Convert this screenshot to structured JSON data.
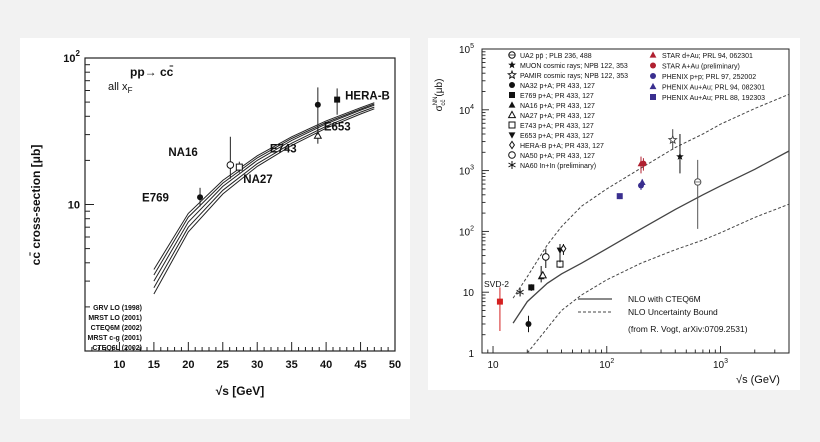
{
  "chart_data": [
    {
      "type": "line",
      "title": "pp→ cc̄",
      "subtitle": "all x_F",
      "xlabel": "√s [GeV]",
      "ylabel": "cc̄ cross-section [μb]",
      "xlim": [
        5,
        50
      ],
      "ylim": [
        1,
        100
      ],
      "y_scale": "log",
      "x_ticks": [
        "10",
        "15",
        "20",
        "25",
        "30",
        "35",
        "40",
        "45",
        "50"
      ],
      "x_tick_values": [
        10,
        15,
        20,
        25,
        30,
        35,
        40,
        45,
        50
      ],
      "y_ticks": [
        {
          "v": 10,
          "base": "10",
          "exp": ""
        },
        {
          "v": 100,
          "base": "10",
          "exp": "2"
        }
      ],
      "experiments": [
        {
          "label": "E769",
          "x": 21.7,
          "y": 11.2,
          "err_low": 9.7,
          "err_high": 13.0,
          "marker": "filled-circle"
        },
        {
          "label": "NA16",
          "x": 26.1,
          "y": 18.6,
          "err_low": 15.0,
          "err_high": 29.0,
          "marker": "open-circle"
        },
        {
          "label": "NA27",
          "x": 27.4,
          "y": 18.0,
          "err_low": 16.5,
          "err_high": 19.6,
          "marker": "open-square"
        },
        {
          "label": "E743",
          "x": 38.8,
          "y": 29.5,
          "err_low": 26.0,
          "err_high": 33.0,
          "marker": "open-triangle"
        },
        {
          "label": "E653",
          "x": 38.8,
          "y": 48.0,
          "err_low": 30.0,
          "err_high": 63.0,
          "marker": "filled-circle"
        },
        {
          "label": "HERA-B",
          "x": 41.6,
          "y": 52.0,
          "err_low": 41.0,
          "err_high": 62.0,
          "marker": "filled-square"
        }
      ],
      "curves": [
        {
          "name": "GRV LO (1998)",
          "x": [
            15,
            20,
            25,
            30,
            35,
            40,
            45,
            47
          ],
          "y": [
            3.6,
            8.7,
            14.6,
            21.5,
            29.0,
            37.2,
            45.8,
            49.5
          ]
        },
        {
          "name": "MRST LO (2001)",
          "x": [
            15,
            20,
            25,
            30,
            35,
            40,
            45,
            47
          ],
          "y": [
            3.3,
            8.2,
            14.0,
            20.8,
            28.2,
            36.3,
            44.8,
            48.5
          ]
        },
        {
          "name": "CTEQ6M (2002)",
          "x": [
            15,
            20,
            25,
            30,
            35,
            40,
            45,
            47
          ],
          "y": [
            3.0,
            7.6,
            13.3,
            20.0,
            27.4,
            35.5,
            44.0,
            47.6
          ]
        },
        {
          "name": "MRST c-g (2001)",
          "x": [
            15,
            20,
            25,
            30,
            35,
            40,
            45,
            47
          ],
          "y": [
            2.7,
            7.0,
            12.5,
            19.0,
            26.2,
            34.2,
            42.7,
            46.2
          ]
        },
        {
          "name": "CTEQ6L (2002)",
          "x": [
            15,
            20,
            25,
            30,
            35,
            40,
            45,
            47
          ],
          "y": [
            2.45,
            6.5,
            11.8,
            18.2,
            25.3,
            33.2,
            41.5,
            45.0
          ]
        }
      ]
    },
    {
      "type": "scatter",
      "xlabel": "√s (GeV)",
      "ylabel_main": "σ",
      "ylabel_sup": "NN",
      "ylabel_sub": "cc̄",
      "ylabel_unit": "(μb)",
      "x_scale": "log",
      "y_scale": "log",
      "xlim": [
        8,
        4000
      ],
      "ylim": [
        1,
        100000
      ],
      "x_ticks": [
        {
          "v": 10,
          "base": "10",
          "exp": ""
        },
        {
          "v": 100,
          "base": "10",
          "exp": "2"
        },
        {
          "v": 1000,
          "base": "10",
          "exp": "3"
        }
      ],
      "y_ticks": [
        {
          "v": 1,
          "base": "1",
          "exp": ""
        },
        {
          "v": 10,
          "base": "10",
          "exp": ""
        },
        {
          "v": 100,
          "base": "10",
          "exp": "2"
        },
        {
          "v": 1000,
          "base": "10",
          "exp": "3"
        },
        {
          "v": 10000,
          "base": "10",
          "exp": "4"
        },
        {
          "v": 100000,
          "base": "10",
          "exp": "5"
        }
      ],
      "legend_left": [
        {
          "text": "UA2 pp̄ ; PLB 236, 488",
          "marker": "open-circle-cross"
        },
        {
          "text": "MUON cosmic rays; NPB 122, 353",
          "marker": "filled-star"
        },
        {
          "text": "PAMIR cosmic rays; NPB 122, 353",
          "marker": "open-star"
        },
        {
          "text": "NA32 p+A; PR 433, 127",
          "marker": "filled-circle"
        },
        {
          "text": "E769 p+A; PR 433, 127",
          "marker": "filled-square"
        },
        {
          "text": "NA16 p+A; PR 433, 127",
          "marker": "filled-triangle"
        },
        {
          "text": "NA27 p+A; PR 433, 127",
          "marker": "open-triangle"
        },
        {
          "text": "E743 p+A; PR 433, 127",
          "marker": "open-square"
        },
        {
          "text": "E653 p+A; PR 433, 127",
          "marker": "filled-triangle-down"
        },
        {
          "text": "HERA-B p+A; PR 433, 127",
          "marker": "open-diamond"
        },
        {
          "text": "NA50 p+A; PR 433, 127",
          "marker": "open-circle"
        },
        {
          "text": "NA60 In+In (preliminary)",
          "marker": "asterisk"
        }
      ],
      "legend_right": [
        {
          "text": "STAR d+Au; PRL 94, 062301",
          "marker": "filled-triangle",
          "color": "#b02030"
        },
        {
          "text": "STAR A+Au (preliminary)",
          "marker": "filled-circle",
          "color": "#b02030"
        },
        {
          "text": "PHENIX p+p; PRL 97, 252002",
          "marker": "filled-circle",
          "color": "#3a2f8f"
        },
        {
          "text": "PHENIX Au+Au; PRL 94, 082301",
          "marker": "filled-triangle",
          "color": "#3a2f8f"
        },
        {
          "text": "PHENIX Au+Au; PRL 88, 192303",
          "marker": "filled-square",
          "color": "#3a2f8f"
        }
      ],
      "line_legend": [
        {
          "text": "NLO with CTEQ6M",
          "style": "solid"
        },
        {
          "text": "NLO Uncertainty Bound",
          "style": "dashed"
        }
      ],
      "credit": "(from R. Vogt, arXiv:0709.2531)",
      "svd_label": "SVD-2",
      "svd_color": "#d42020",
      "points": [
        {
          "x": 11.5,
          "y": 7.0,
          "err_low": 2.3,
          "err_high": 12.0,
          "marker": "filled-square",
          "color": "#d42020"
        },
        {
          "x": 17.3,
          "y": 10.0,
          "err_low": 8.5,
          "err_high": 11.5,
          "marker": "asterisk",
          "color": "#222222"
        },
        {
          "x": 20.5,
          "y": 3.0,
          "err_low": 2.2,
          "err_high": 4.1,
          "marker": "filled-circle",
          "color": "#111111"
        },
        {
          "x": 21.7,
          "y": 12.0,
          "err_low": 10.5,
          "err_high": 13.5,
          "marker": "filled-square",
          "color": "#111111"
        },
        {
          "x": 26.5,
          "y": 18.0,
          "err_low": 14.5,
          "err_high": 27.0,
          "marker": "filled-triangle",
          "color": "#111111"
        },
        {
          "x": 27.4,
          "y": 19.0,
          "err_low": 17.5,
          "err_high": 20.5,
          "marker": "open-triangle",
          "color": "#111111"
        },
        {
          "x": 29.1,
          "y": 38.0,
          "err_low": 25.0,
          "err_high": 52.0,
          "marker": "open-circle",
          "color": "#111111"
        },
        {
          "x": 38.8,
          "y": 29.0,
          "err_low": 25.0,
          "err_high": 33.0,
          "marker": "open-square",
          "color": "#111111"
        },
        {
          "x": 38.8,
          "y": 49.0,
          "err_low": 31.0,
          "err_high": 62.0,
          "marker": "filled-triangle-down",
          "color": "#111111"
        },
        {
          "x": 41.6,
          "y": 52.0,
          "err_low": 41.0,
          "err_high": 62.0,
          "marker": "open-diamond",
          "color": "#111111"
        },
        {
          "x": 130,
          "y": 380,
          "err_low": 340,
          "err_high": 420,
          "marker": "filled-square",
          "color": "#3a2f8f"
        },
        {
          "x": 200,
          "y": 570,
          "err_low": 480,
          "err_high": 660,
          "marker": "filled-circle",
          "color": "#3a2f8f"
        },
        {
          "x": 205,
          "y": 640,
          "err_low": 560,
          "err_high": 720,
          "marker": "filled-triangle",
          "color": "#3a2f8f"
        },
        {
          "x": 200,
          "y": 1300,
          "err_low": 900,
          "err_high": 1700,
          "marker": "filled-triangle",
          "color": "#b02030"
        },
        {
          "x": 210,
          "y": 1300,
          "err_low": 1000,
          "err_high": 1600,
          "marker": "filled-circle",
          "color": "#b02030"
        },
        {
          "x": 380,
          "y": 3200,
          "err_low": 2200,
          "err_high": 4800,
          "marker": "open-star",
          "color": "#444444"
        },
        {
          "x": 440,
          "y": 1700,
          "err_low": 900,
          "err_high": 4000,
          "marker": "filled-star",
          "color": "#111111"
        },
        {
          "x": 630,
          "y": 650,
          "err_low": 110,
          "err_high": 1500,
          "marker": "open-circle-cross",
          "color": "#555555"
        }
      ],
      "curves": [
        {
          "name": "NLO with CTEQ6M",
          "style": "solid",
          "x": [
            15,
            20,
            30,
            40,
            60,
            100,
            200,
            400,
            700,
            1000,
            2000,
            4000
          ],
          "y": [
            3.1,
            7.0,
            14.0,
            20.0,
            30.0,
            52.0,
            110.0,
            230.0,
            400.0,
            560.0,
            1050.0,
            2100.0
          ]
        },
        {
          "name": "NLO Uncertainty Bound",
          "style": "dashed",
          "x": [
            20,
            40,
            60,
            100,
            200,
            400,
            700,
            1000,
            2000,
            4000
          ],
          "y": [
            1.0,
            5.0,
            9.0,
            16.0,
            30.0,
            50.0,
            72.0,
            95.0,
            170.0,
            280.0
          ]
        },
        {
          "name": "NLO Uncertainty Bound",
          "style": "dashed",
          "x": [
            15,
            20,
            30,
            40,
            60,
            100,
            200,
            400,
            700,
            1000,
            2000,
            4000
          ],
          "y": [
            8.0,
            18.0,
            60.0,
            120.0,
            260.0,
            500.0,
            1100.0,
            2400.0,
            4000.0,
            5800.0,
            10500.0,
            18000.0
          ]
        }
      ]
    }
  ],
  "left_legend_labels": [
    "GRV LO (1998)",
    "MRST LO (2001)",
    "CTEQ6M (2002)",
    "MRST c-g (2001)",
    "CTEQ6L (2002)"
  ]
}
